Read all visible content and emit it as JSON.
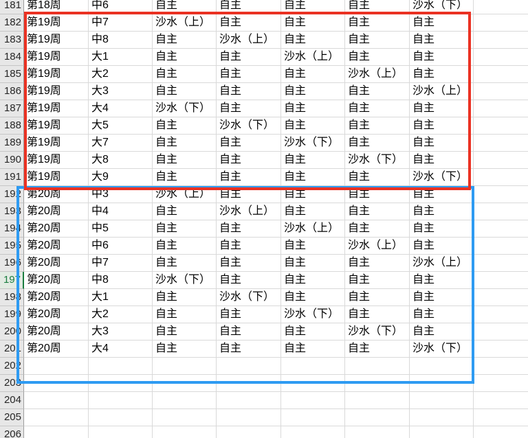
{
  "app": {
    "type": "spreadsheet-grid",
    "description_title": "kindergarten weekly activity schedule"
  },
  "colors": {
    "red_annotation": "#ea3223",
    "blue_annotation": "#2e9bf2",
    "active_row_green": "#1a7d3f",
    "gridline": "#d9d9d9",
    "row_header_bg": "#e7e7e7"
  },
  "selection": {
    "active_row": "197"
  },
  "annotations": {
    "red_box_rows": "182-191",
    "blue_box_rows": "192-203"
  },
  "values": {
    "free_play": "自主",
    "sand_water_upper": "沙水（上）",
    "sand_water_lower": "沙水（下）"
  },
  "rows": [
    {
      "num": "181",
      "week": "第18周",
      "cls": "中6",
      "cells": [
        "自主",
        "自主",
        "自主",
        "自主",
        "沙水（下）"
      ],
      "active": false
    },
    {
      "num": "182",
      "week": "第19周",
      "cls": "中7",
      "cells": [
        "沙水（上）",
        "自主",
        "自主",
        "自主",
        "自主"
      ],
      "active": false
    },
    {
      "num": "183",
      "week": "第19周",
      "cls": "中8",
      "cells": [
        "自主",
        "沙水（上）",
        "自主",
        "自主",
        "自主"
      ],
      "active": false
    },
    {
      "num": "184",
      "week": "第19周",
      "cls": "大1",
      "cells": [
        "自主",
        "自主",
        "沙水（上）",
        "自主",
        "自主"
      ],
      "active": false
    },
    {
      "num": "185",
      "week": "第19周",
      "cls": "大2",
      "cells": [
        "自主",
        "自主",
        "自主",
        "沙水（上）",
        "自主"
      ],
      "active": false
    },
    {
      "num": "186",
      "week": "第19周",
      "cls": "大3",
      "cells": [
        "自主",
        "自主",
        "自主",
        "自主",
        "沙水（上）"
      ],
      "active": false
    },
    {
      "num": "187",
      "week": "第19周",
      "cls": "大4",
      "cells": [
        "沙水（下）",
        "自主",
        "自主",
        "自主",
        "自主"
      ],
      "active": false
    },
    {
      "num": "188",
      "week": "第19周",
      "cls": "大5",
      "cells": [
        "自主",
        "沙水（下）",
        "自主",
        "自主",
        "自主"
      ],
      "active": false
    },
    {
      "num": "189",
      "week": "第19周",
      "cls": "大7",
      "cells": [
        "自主",
        "自主",
        "沙水（下）",
        "自主",
        "自主"
      ],
      "active": false
    },
    {
      "num": "190",
      "week": "第19周",
      "cls": "大8",
      "cells": [
        "自主",
        "自主",
        "自主",
        "沙水（下）",
        "自主"
      ],
      "active": false
    },
    {
      "num": "191",
      "week": "第19周",
      "cls": "大9",
      "cells": [
        "自主",
        "自主",
        "自主",
        "自主",
        "沙水（下）"
      ],
      "active": false
    },
    {
      "num": "192",
      "week": "第20周",
      "cls": "中3",
      "cells": [
        "沙水（上）",
        "自主",
        "自主",
        "自主",
        "自主"
      ],
      "active": false
    },
    {
      "num": "193",
      "week": "第20周",
      "cls": "中4",
      "cells": [
        "自主",
        "沙水（上）",
        "自主",
        "自主",
        "自主"
      ],
      "active": false
    },
    {
      "num": "194",
      "week": "第20周",
      "cls": "中5",
      "cells": [
        "自主",
        "自主",
        "沙水（上）",
        "自主",
        "自主"
      ],
      "active": false
    },
    {
      "num": "195",
      "week": "第20周",
      "cls": "中6",
      "cells": [
        "自主",
        "自主",
        "自主",
        "沙水（上）",
        "自主"
      ],
      "active": false
    },
    {
      "num": "196",
      "week": "第20周",
      "cls": "中7",
      "cells": [
        "自主",
        "自主",
        "自主",
        "自主",
        "沙水（上）"
      ],
      "active": false
    },
    {
      "num": "197",
      "week": "第20周",
      "cls": "中8",
      "cells": [
        "沙水（下）",
        "自主",
        "自主",
        "自主",
        "自主"
      ],
      "active": true
    },
    {
      "num": "198",
      "week": "第20周",
      "cls": "大1",
      "cells": [
        "自主",
        "沙水（下）",
        "自主",
        "自主",
        "自主"
      ],
      "active": false
    },
    {
      "num": "199",
      "week": "第20周",
      "cls": "大2",
      "cells": [
        "自主",
        "自主",
        "沙水（下）",
        "自主",
        "自主"
      ],
      "active": false
    },
    {
      "num": "200",
      "week": "第20周",
      "cls": "大3",
      "cells": [
        "自主",
        "自主",
        "自主",
        "沙水（下）",
        "自主"
      ],
      "active": false
    },
    {
      "num": "201",
      "week": "第20周",
      "cls": "大4",
      "cells": [
        "自主",
        "自主",
        "自主",
        "自主",
        "沙水（下）"
      ],
      "active": false
    },
    {
      "num": "202",
      "week": "",
      "cls": "",
      "cells": [
        "",
        "",
        "",
        "",
        ""
      ],
      "active": false
    },
    {
      "num": "203",
      "week": "",
      "cls": "",
      "cells": [
        "",
        "",
        "",
        "",
        ""
      ],
      "active": false
    },
    {
      "num": "204",
      "week": "",
      "cls": "",
      "cells": [
        "",
        "",
        "",
        "",
        ""
      ],
      "active": false
    },
    {
      "num": "205",
      "week": "",
      "cls": "",
      "cells": [
        "",
        "",
        "",
        "",
        ""
      ],
      "active": false
    },
    {
      "num": "206",
      "week": "",
      "cls": "",
      "cells": [
        "",
        "",
        "",
        "",
        ""
      ],
      "active": false
    }
  ]
}
